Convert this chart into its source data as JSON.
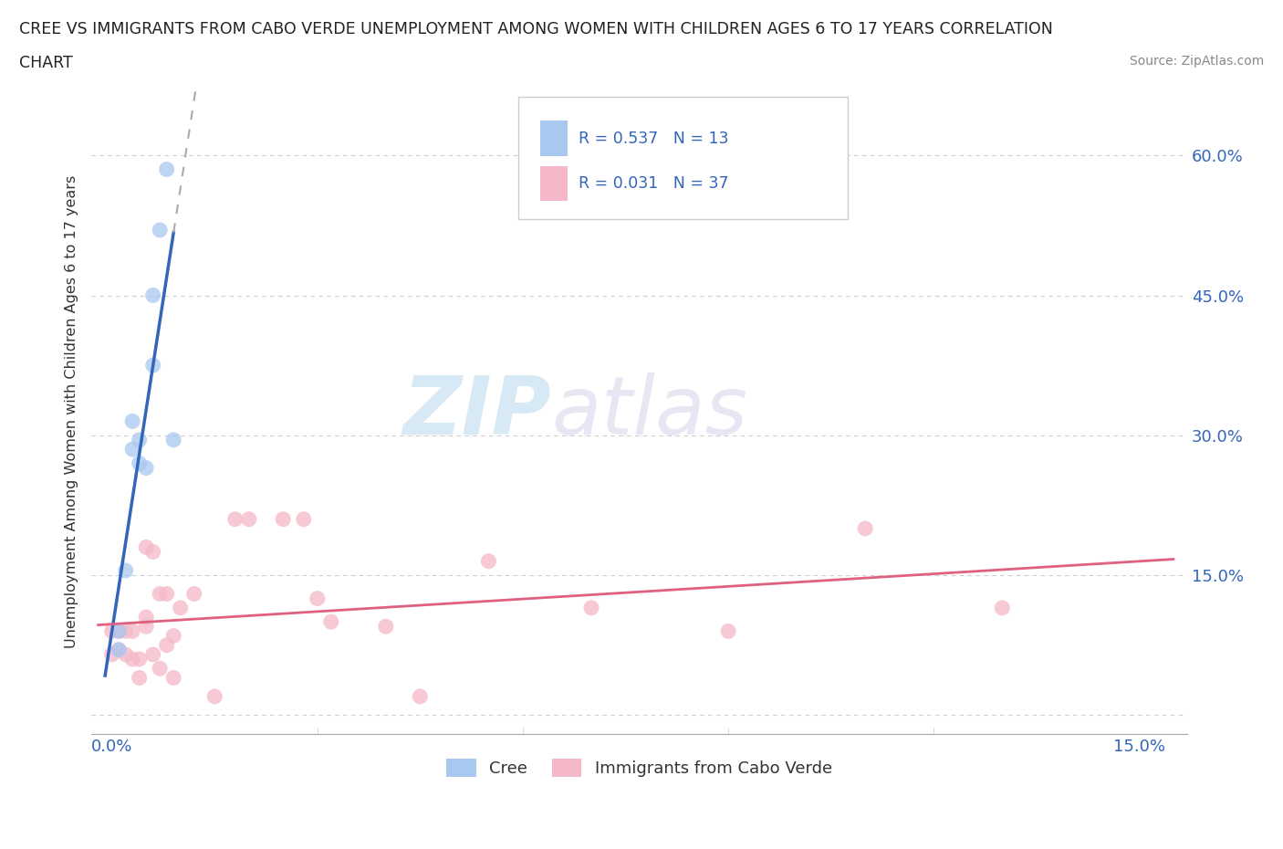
{
  "title_line1": "CREE VS IMMIGRANTS FROM CABO VERDE UNEMPLOYMENT AMONG WOMEN WITH CHILDREN AGES 6 TO 17 YEARS CORRELATION",
  "title_line2": "CHART",
  "source_text": "Source: ZipAtlas.com",
  "ylabel": "Unemployment Among Women with Children Ages 6 to 17 years",
  "xlim": [
    -0.003,
    0.157
  ],
  "ylim": [
    -0.02,
    0.67
  ],
  "xticks": [
    0.0,
    0.03,
    0.06,
    0.09,
    0.12,
    0.15
  ],
  "xticklabels": [
    "0.0%",
    "",
    "",
    "",
    "",
    "15.0%"
  ],
  "yticks": [
    0.0,
    0.15,
    0.3,
    0.45,
    0.6
  ],
  "yticklabels": [
    "",
    "15.0%",
    "30.0%",
    "45.0%",
    "60.0%"
  ],
  "grid_color": "#cccccc",
  "background_color": "#ffffff",
  "cree_color": "#a8c8f0",
  "cabo_verde_color": "#f5b8c8",
  "cree_line_color": "#3366bb",
  "cabo_verde_line_color": "#e06080",
  "cree_line_ext_color": "#cccccc",
  "cree_R": 0.537,
  "cree_N": 13,
  "cabo_verde_R": 0.031,
  "cabo_verde_N": 37,
  "watermark_zip": "ZIP",
  "watermark_atlas": "atlas",
  "legend_cree_label": "Cree",
  "legend_cabo_label": "Immigrants from Cabo Verde",
  "cree_x": [
    0.001,
    0.001,
    0.002,
    0.003,
    0.003,
    0.004,
    0.004,
    0.005,
    0.006,
    0.006,
    0.007,
    0.008,
    0.009
  ],
  "cree_y": [
    0.07,
    0.09,
    0.155,
    0.285,
    0.315,
    0.27,
    0.295,
    0.265,
    0.375,
    0.45,
    0.52,
    0.585,
    0.295
  ],
  "cabo_x": [
    0.0,
    0.0,
    0.001,
    0.001,
    0.002,
    0.002,
    0.003,
    0.003,
    0.004,
    0.004,
    0.005,
    0.005,
    0.005,
    0.006,
    0.006,
    0.007,
    0.007,
    0.008,
    0.008,
    0.009,
    0.009,
    0.01,
    0.012,
    0.015,
    0.018,
    0.02,
    0.025,
    0.028,
    0.03,
    0.032,
    0.04,
    0.045,
    0.055,
    0.07,
    0.09,
    0.11,
    0.13
  ],
  "cabo_y": [
    0.065,
    0.09,
    0.07,
    0.09,
    0.065,
    0.09,
    0.06,
    0.09,
    0.04,
    0.06,
    0.095,
    0.105,
    0.18,
    0.065,
    0.175,
    0.05,
    0.13,
    0.075,
    0.13,
    0.04,
    0.085,
    0.115,
    0.13,
    0.02,
    0.21,
    0.21,
    0.21,
    0.21,
    0.125,
    0.1,
    0.095,
    0.02,
    0.165,
    0.115,
    0.09,
    0.2,
    0.115
  ]
}
